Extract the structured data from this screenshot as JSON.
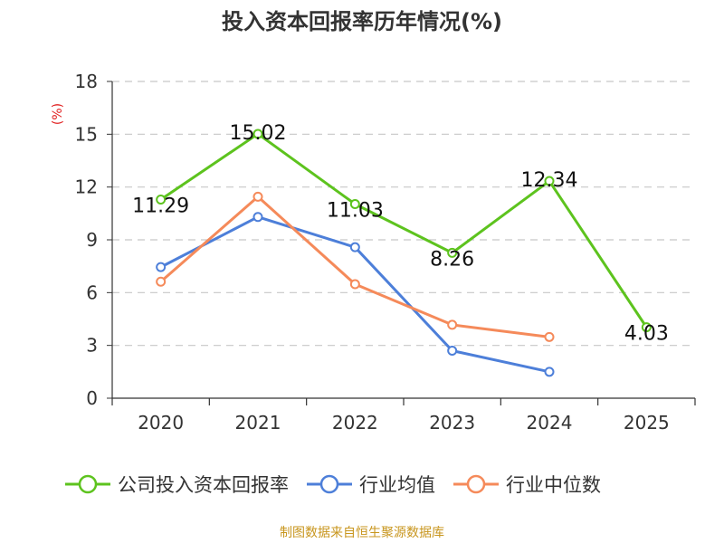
{
  "chart_data": {
    "type": "line",
    "title": "投入资本回报率历年情况(%)",
    "ylabel": "(%)",
    "xlabel": "",
    "categories": [
      "2020",
      "2021",
      "2022",
      "2023",
      "2024",
      "2025"
    ],
    "ylim": [
      0,
      18
    ],
    "yticks": [
      0,
      3,
      6,
      9,
      12,
      15,
      18
    ],
    "grid": true,
    "legend_position": "bottom",
    "series": [
      {
        "name": "公司投入资本回报率",
        "color": "#5dc31e",
        "values": [
          11.29,
          15.02,
          11.03,
          8.26,
          12.34,
          4.03
        ],
        "labels": [
          "11.29",
          "15.02",
          "11.03",
          "8.26",
          "12.34",
          "4.03"
        ]
      },
      {
        "name": "行业均值",
        "color": "#4d7fd9",
        "values": [
          7.45,
          10.3,
          8.58,
          2.7,
          1.5,
          null
        ]
      },
      {
        "name": "行业中位数",
        "color": "#f58a5a",
        "values": [
          6.62,
          11.45,
          6.48,
          4.17,
          3.48,
          null
        ]
      }
    ]
  },
  "source": "制图数据来自恒生聚源数据库"
}
